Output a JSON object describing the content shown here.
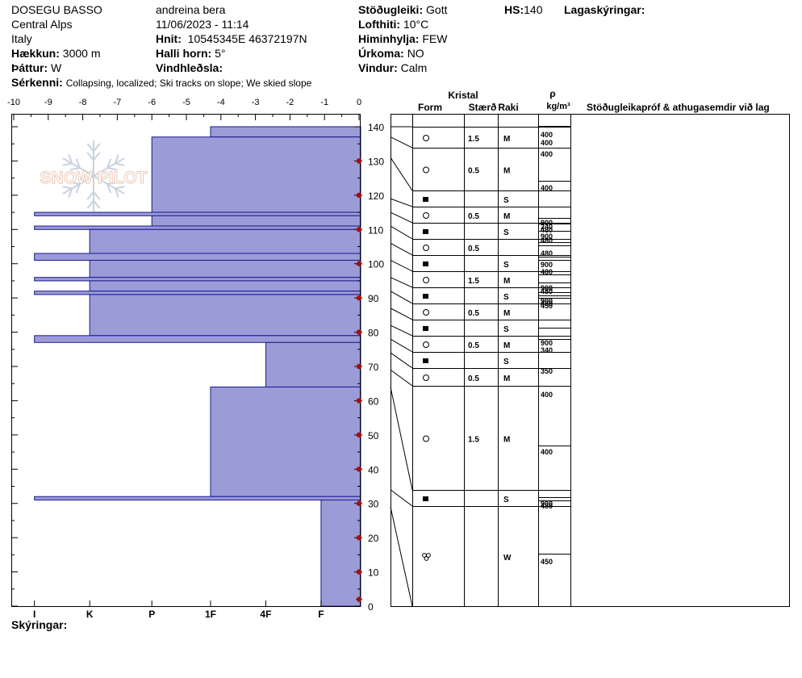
{
  "header": {
    "location": "DOSEGU BASSO",
    "region": "Central Alps",
    "country": "Italy",
    "elevation_label": "Hækkun:",
    "elevation": "3000 m",
    "aspect_label": "Þáttur:",
    "aspect": "W",
    "observer": "andreina bera",
    "datetime": "11/06/2023 - 11:14",
    "coords_label": "Hnit:",
    "coords": "10545345E 46372197N",
    "slope_label": "Halli horn:",
    "slope": "5°",
    "wind_loading_label": "Vindhleðsla:",
    "wind_loading": "",
    "stability_label": "Stöðugleiki:",
    "stability": "Gott",
    "air_temp_label": "Lofthiti:",
    "air_temp": "10°C",
    "sky_label": "Himinhylja:",
    "sky": "FEW",
    "precip_label": "Úrkoma:",
    "precip": "NO",
    "wind_label": "Vindur:",
    "wind": "Calm",
    "hs_label": "HS:",
    "hs": "140",
    "layer_notes_label": "Lagaskýringar:",
    "features_label": "Sérkenni:",
    "features": "Collapsing, localized;  Ski tracks on slope;  We skied slope",
    "notes_label": "Skýringar:"
  },
  "logo_text": "SNOW PILOT",
  "table_headers": {
    "crystal": "Kristal",
    "form": "Form",
    "size": "Stærð",
    "moisture": "Raki",
    "rho": "ρ",
    "density_unit": "kg/m³",
    "tests": "Stöðugleikapróf & athugasemdir við lag"
  },
  "chart_data": {
    "type": "bar",
    "orientation": "horizontal",
    "temp_axis": {
      "ticks": [
        -10,
        -9,
        -8,
        -7,
        -6,
        -5,
        -4,
        -3,
        -2,
        -1,
        0
      ]
    },
    "height_axis": {
      "min": 0,
      "max": 140,
      "ticks": [
        0,
        10,
        20,
        30,
        40,
        50,
        60,
        70,
        80,
        90,
        100,
        110,
        120,
        130,
        140
      ]
    },
    "hardness_labels": [
      "I",
      "K",
      "P",
      "1F",
      "4F",
      "F"
    ],
    "hardness_positions": [
      -9.4,
      -7.8,
      -6.0,
      -4.3,
      -2.7,
      -1.1
    ],
    "hardness_layers": [
      {
        "bottom": 137,
        "top": 140,
        "hardness": -4.3
      },
      {
        "bottom": 115,
        "top": 137,
        "hardness": -6.0
      },
      {
        "bottom": 114,
        "top": 115,
        "hardness": -9.4
      },
      {
        "bottom": 111,
        "top": 114,
        "hardness": -6.0
      },
      {
        "bottom": 110,
        "top": 111,
        "hardness": -9.4
      },
      {
        "bottom": 103,
        "top": 110,
        "hardness": -7.8
      },
      {
        "bottom": 101,
        "top": 103,
        "hardness": -9.4
      },
      {
        "bottom": 96,
        "top": 101,
        "hardness": -7.8
      },
      {
        "bottom": 95,
        "top": 96,
        "hardness": -9.4
      },
      {
        "bottom": 92,
        "top": 95,
        "hardness": -7.8
      },
      {
        "bottom": 91,
        "top": 92,
        "hardness": -9.4
      },
      {
        "bottom": 79,
        "top": 91,
        "hardness": -7.8
      },
      {
        "bottom": 77,
        "top": 79,
        "hardness": -9.4
      },
      {
        "bottom": 64,
        "top": 77,
        "hardness": -2.7
      },
      {
        "bottom": 32,
        "top": 64,
        "hardness": -4.3
      },
      {
        "bottom": 31,
        "top": 32,
        "hardness": -9.4
      },
      {
        "bottom": 0,
        "top": 31,
        "hardness": -1.1
      }
    ],
    "temperature_profile": [
      {
        "height": 130,
        "temp": 0
      },
      {
        "height": 120,
        "temp": 0
      },
      {
        "height": 110,
        "temp": 0
      },
      {
        "height": 100,
        "temp": 0
      },
      {
        "height": 90,
        "temp": 0
      },
      {
        "height": 80,
        "temp": 0
      },
      {
        "height": 70,
        "temp": 0
      },
      {
        "height": 60,
        "temp": 0
      },
      {
        "height": 50,
        "temp": 0
      },
      {
        "height": 40,
        "temp": 0
      },
      {
        "height": 30,
        "temp": 0
      },
      {
        "height": 20,
        "temp": 0
      },
      {
        "height": 10,
        "temp": 0
      },
      {
        "height": 2,
        "temp": 0
      }
    ]
  },
  "layer_rows": [
    {
      "top": 137,
      "bottom": 131,
      "form": "circle",
      "size": "1.5",
      "moist": "M"
    },
    {
      "top": 131,
      "bottom": 119,
      "form": "circle",
      "size": "0.5",
      "moist": "M"
    },
    {
      "top": 119,
      "bottom": 115,
      "form": "square",
      "size": "",
      "moist": "S"
    },
    {
      "top": 115,
      "bottom": 111,
      "form": "circle",
      "size": "0.5",
      "moist": "M"
    },
    {
      "top": 111,
      "bottom": 106,
      "form": "square",
      "size": "",
      "moist": "S"
    },
    {
      "top": 106,
      "bottom": 101,
      "form": "circle",
      "size": "0.5",
      "moist": ""
    },
    {
      "top": 101,
      "bottom": 96,
      "form": "square",
      "size": "",
      "moist": "S"
    },
    {
      "top": 96,
      "bottom": 92,
      "form": "circle",
      "size": "1.5",
      "moist": "M"
    },
    {
      "top": 92,
      "bottom": 87,
      "form": "square",
      "size": "",
      "moist": "S"
    },
    {
      "top": 87,
      "bottom": 82,
      "form": "circle",
      "size": "0.5",
      "moist": "M"
    },
    {
      "top": 82,
      "bottom": 78,
      "form": "square",
      "size": "",
      "moist": "S"
    },
    {
      "top": 78,
      "bottom": 74,
      "form": "circle",
      "size": "0.5",
      "moist": "M"
    },
    {
      "top": 74,
      "bottom": 69,
      "form": "square",
      "size": "",
      "moist": "S"
    },
    {
      "top": 69,
      "bottom": 64,
      "form": "circle",
      "size": "0.5",
      "moist": "M"
    },
    {
      "top": 64,
      "bottom": 34,
      "form": "circle",
      "size": "1.5",
      "moist": "M"
    },
    {
      "top": 34,
      "bottom": 29,
      "form": "square",
      "size": "",
      "moist": "S"
    },
    {
      "top": 29,
      "bottom": 0,
      "form": "melt",
      "size": "",
      "moist": "W"
    }
  ],
  "boundary_heights": [
    140,
    137,
    131,
    119,
    115,
    111,
    106,
    101,
    96,
    92,
    87,
    82,
    78,
    74,
    69,
    64,
    34,
    29,
    0
  ],
  "density_labels": [
    {
      "y": 166,
      "text": "400"
    },
    {
      "y": 176,
      "text": "400"
    },
    {
      "y": 190,
      "text": "400"
    },
    {
      "y": 232,
      "text": "400"
    },
    {
      "y": 275,
      "text": "900"
    },
    {
      "y": 280,
      "text": "240"
    },
    {
      "y": 284,
      "text": "480"
    },
    {
      "y": 292,
      "text": "900"
    },
    {
      "y": 297,
      "text": "480"
    },
    {
      "y": 313,
      "text": "480"
    },
    {
      "y": 327,
      "text": "900"
    },
    {
      "y": 336,
      "text": "480"
    },
    {
      "y": 356,
      "text": "900"
    },
    {
      "y": 360,
      "text": "480"
    },
    {
      "y": 372,
      "text": "900"
    },
    {
      "y": 375,
      "text": "480"
    },
    {
      "y": 378,
      "text": "450"
    },
    {
      "y": 424,
      "text": "900"
    },
    {
      "y": 433,
      "text": "340"
    },
    {
      "y": 459,
      "text": "350"
    },
    {
      "y": 488,
      "text": "400"
    },
    {
      "y": 559,
      "text": "400"
    },
    {
      "y": 623,
      "text": "900"
    },
    {
      "y": 626,
      "text": "480"
    },
    {
      "y": 695,
      "text": "450"
    }
  ],
  "density_lines": [
    156,
    183,
    224,
    270,
    277,
    286,
    300,
    304,
    318,
    322,
    340,
    350,
    362,
    366,
    369,
    406,
    420,
    436,
    478,
    552,
    616,
    620,
    686
  ]
}
